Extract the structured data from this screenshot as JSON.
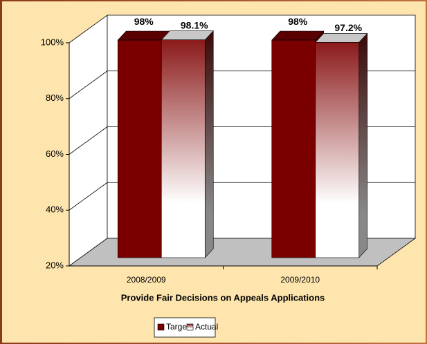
{
  "chart_data": {
    "type": "bar3d",
    "x_label": "Provide Fair Decisions on Appeals Applications",
    "categories": [
      "2008/2009",
      "2009/2010"
    ],
    "series": [
      {
        "name": "Target",
        "color": "#7a0000",
        "values": [
          98,
          98
        ],
        "value_labels": [
          "98%",
          "98%"
        ]
      },
      {
        "name": "Actual",
        "color": "#8b1a1a",
        "values": [
          98.1,
          97.2
        ],
        "value_labels": [
          "98.1%",
          "97.2%"
        ]
      }
    ],
    "ylim": [
      20,
      100
    ],
    "yticks": [
      {
        "value": 20,
        "label": "20%"
      },
      {
        "value": 40,
        "label": "40%"
      },
      {
        "value": 60,
        "label": "60%"
      },
      {
        "value": 80,
        "label": "80%"
      },
      {
        "value": 100,
        "label": "100%"
      }
    ],
    "grid": true,
    "legend": "bottom"
  }
}
